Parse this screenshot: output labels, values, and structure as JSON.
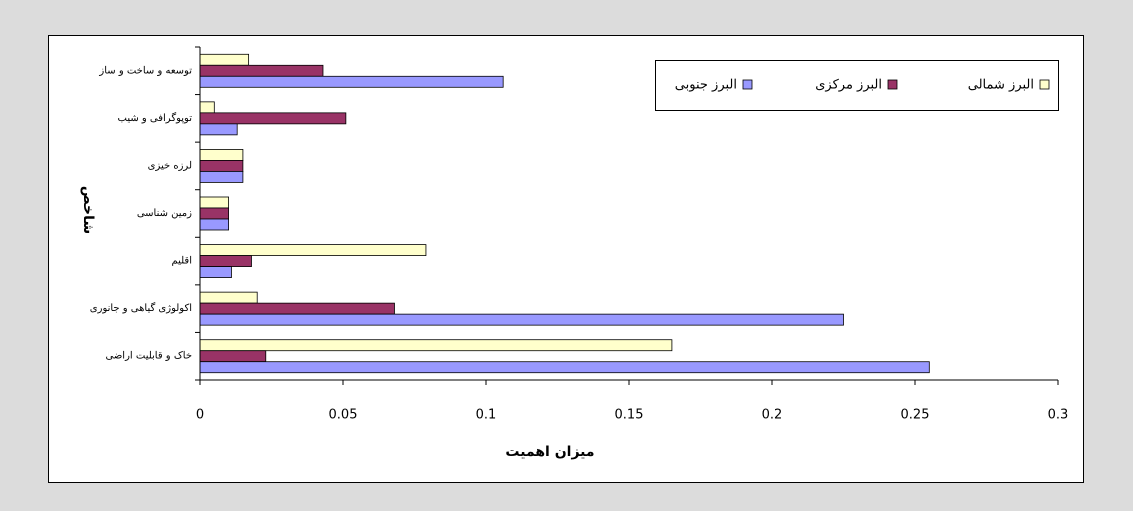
{
  "chart_data": {
    "type": "barh",
    "categories": [
      "توسعه و ساخت و ساز",
      "توپوگرافی و شیب",
      "لرزه خیزی",
      "زمین شناسی",
      "اقلیم",
      "اکولوژی گیاهی و جانوری",
      "خاک و قابلیت اراضی"
    ],
    "series": [
      {
        "name": "البرز شمالی",
        "color": "#ffffcc",
        "values": [
          0.017,
          0.005,
          0.015,
          0.01,
          0.079,
          0.02,
          0.165
        ]
      },
      {
        "name": "البرز مرکزی",
        "color": "#993366",
        "values": [
          0.043,
          0.051,
          0.015,
          0.01,
          0.018,
          0.068,
          0.023
        ]
      },
      {
        "name": "البرز جنوبی",
        "color": "#9999ff",
        "values": [
          0.106,
          0.013,
          0.015,
          0.01,
          0.011,
          0.225,
          0.255
        ]
      }
    ],
    "xlabel": "میزان اهمیت",
    "ylabel": "شاخص",
    "xlim": [
      0,
      0.3
    ],
    "xticks": [
      0,
      0.05,
      0.1,
      0.15,
      0.2,
      0.25,
      0.3
    ],
    "grid": false
  }
}
